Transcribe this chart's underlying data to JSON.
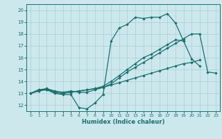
{
  "xlabel": "Humidex (Indice chaleur)",
  "bg_color": "#cce8ec",
  "grid_color": "#aacdd4",
  "line_color": "#1a6e6e",
  "xlim": [
    -0.5,
    23.5
  ],
  "ylim": [
    11.5,
    20.5
  ],
  "xticks": [
    0,
    1,
    2,
    3,
    4,
    5,
    6,
    7,
    8,
    9,
    10,
    11,
    12,
    13,
    14,
    15,
    16,
    17,
    18,
    19,
    20,
    21,
    22,
    23
  ],
  "yticks": [
    12,
    13,
    14,
    15,
    16,
    17,
    18,
    19,
    20
  ],
  "line1_y": [
    13.0,
    13.3,
    13.3,
    13.0,
    12.9,
    12.9,
    11.8,
    11.7,
    12.2,
    12.9,
    17.4,
    18.5,
    18.8,
    19.4,
    19.3,
    19.4,
    19.4,
    19.7,
    18.9,
    17.4,
    15.9,
    15.3,
    null,
    null
  ],
  "line2_y": [
    13.0,
    13.2,
    13.3,
    13.1,
    13.0,
    13.1,
    13.2,
    13.3,
    13.4,
    13.5,
    13.7,
    13.9,
    14.1,
    14.3,
    14.5,
    14.7,
    14.9,
    15.1,
    15.3,
    15.5,
    15.6,
    15.8,
    null,
    null
  ],
  "line3_y": [
    13.0,
    13.2,
    13.4,
    13.1,
    13.0,
    13.1,
    13.2,
    13.3,
    13.4,
    13.6,
    14.0,
    14.5,
    15.0,
    15.5,
    16.0,
    16.3,
    16.7,
    17.1,
    17.5,
    17.4,
    null,
    null,
    null,
    null
  ],
  "line4_y": [
    13.0,
    13.3,
    13.4,
    13.2,
    13.1,
    13.2,
    13.1,
    13.1,
    13.3,
    13.5,
    13.8,
    14.3,
    14.8,
    15.2,
    15.6,
    16.0,
    16.4,
    16.8,
    17.2,
    17.6,
    18.0,
    18.0,
    14.8,
    14.7
  ]
}
